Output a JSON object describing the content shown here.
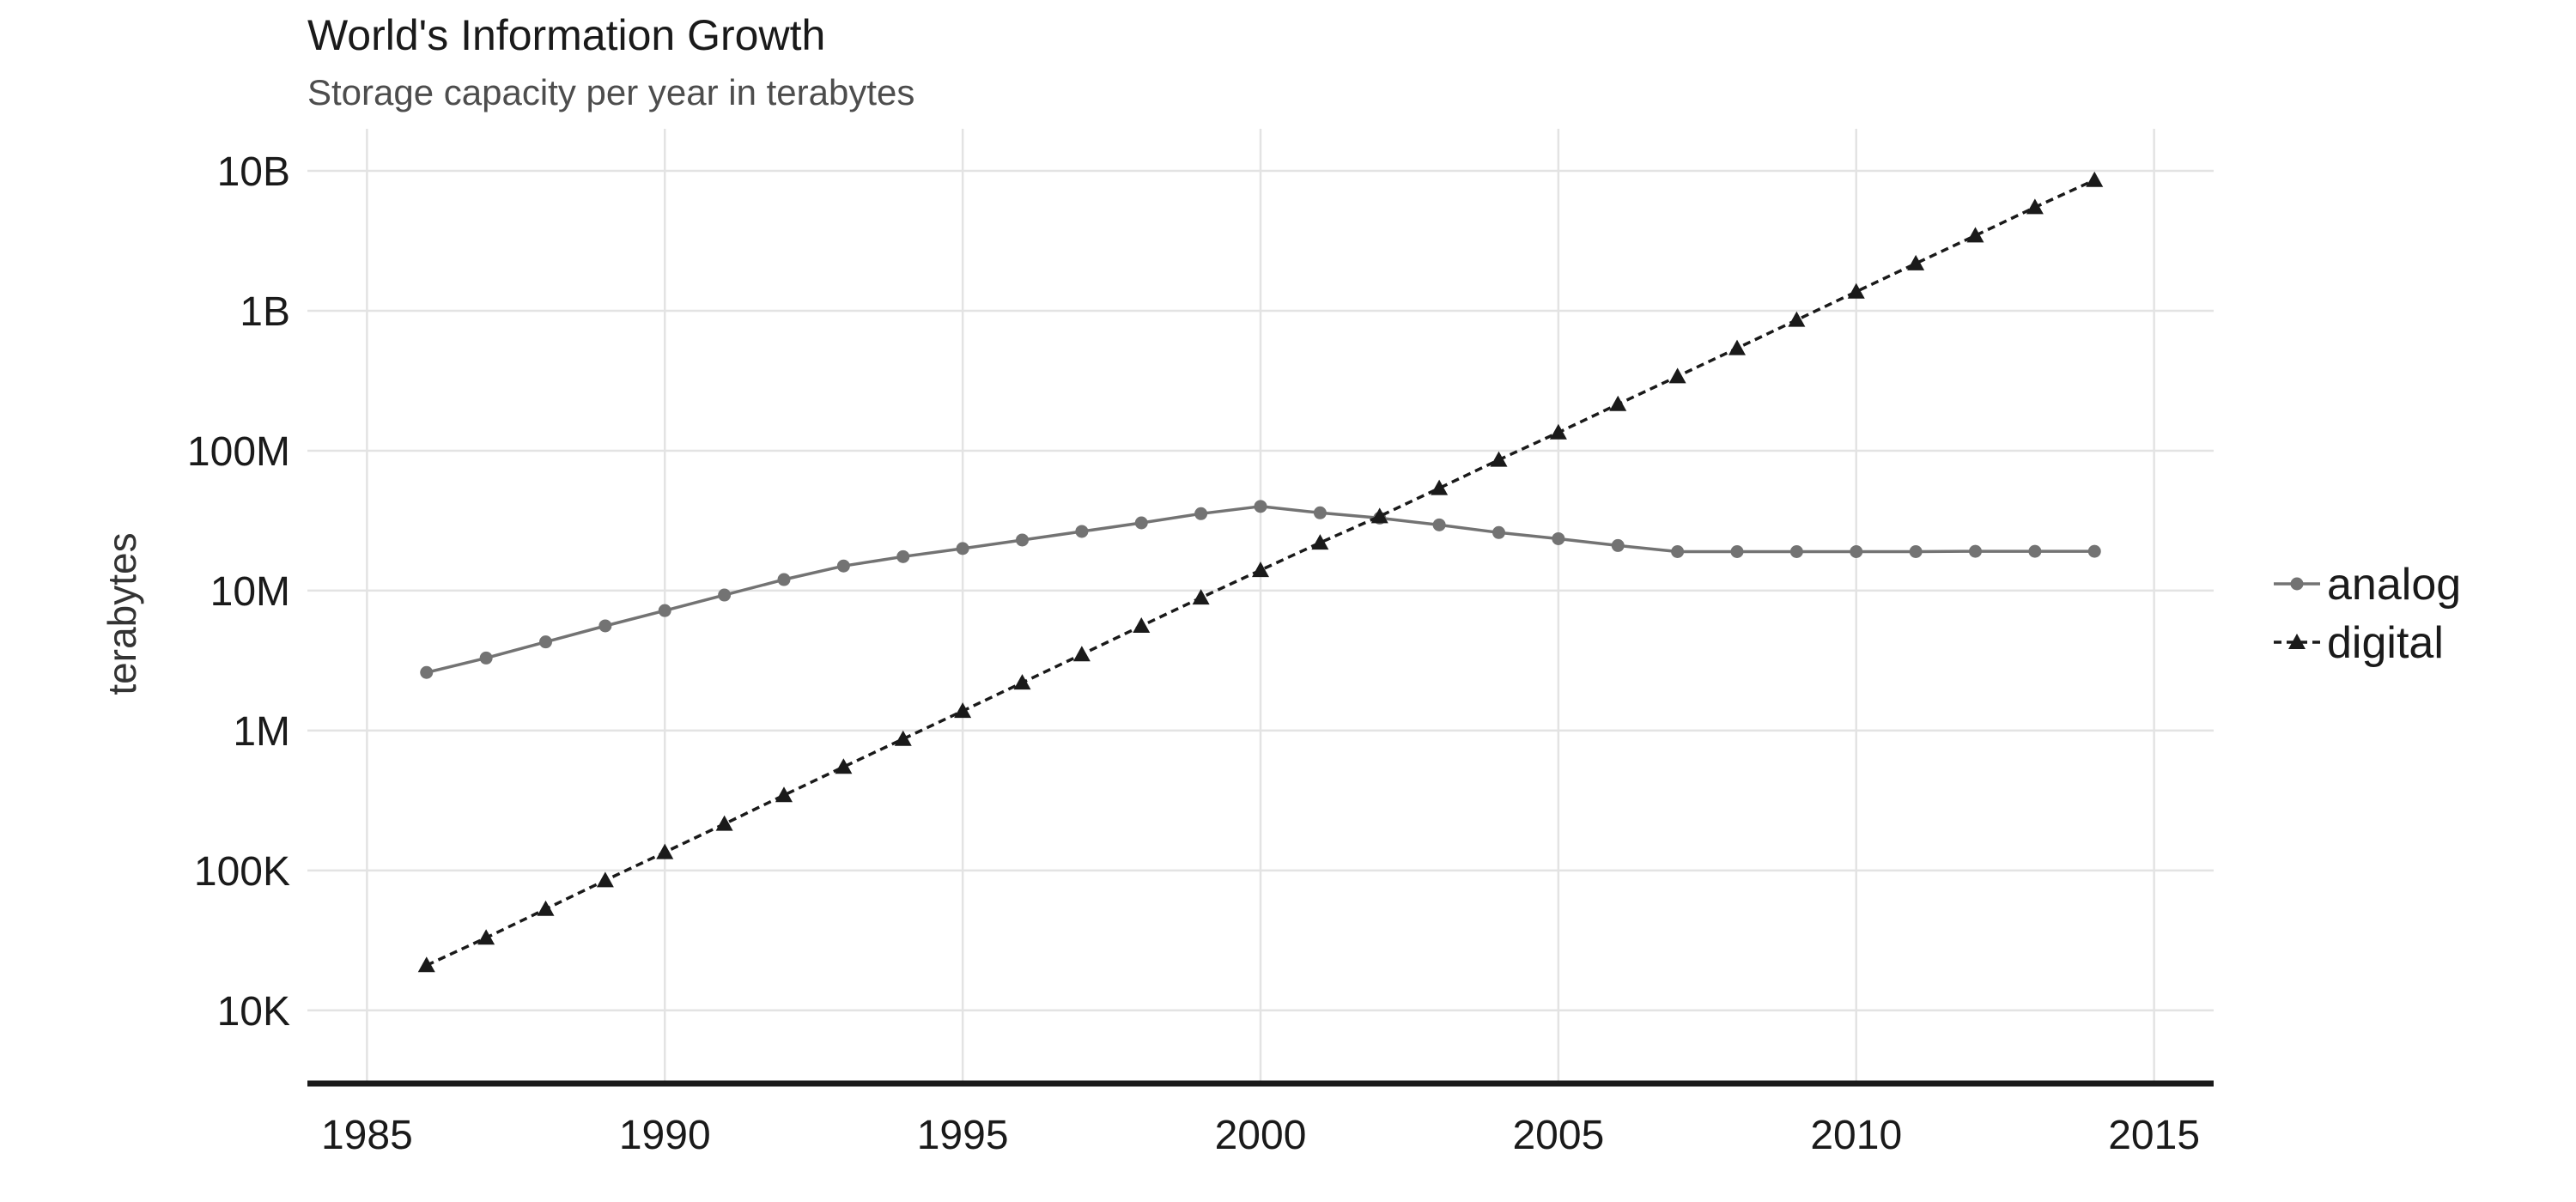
{
  "chart_data": {
    "type": "line",
    "title": "World's Information Growth",
    "subtitle": "Storage capacity per year in terabytes",
    "xlabel": "",
    "ylabel": "terabytes",
    "y_scale": "log10",
    "xlim": [
      1984,
      2016
    ],
    "ylim": [
      3000,
      20000000000
    ],
    "x_ticks": [
      1985,
      1990,
      1995,
      2000,
      2005,
      2010,
      2015
    ],
    "y_ticks": [
      {
        "value": 10000,
        "label": "10K"
      },
      {
        "value": 100000,
        "label": "100K"
      },
      {
        "value": 1000000,
        "label": "1M"
      },
      {
        "value": 10000000,
        "label": "10M"
      },
      {
        "value": 100000000,
        "label": "100M"
      },
      {
        "value": 1000000000,
        "label": "1B"
      },
      {
        "value": 10000000000,
        "label": "10B"
      }
    ],
    "grid": true,
    "legend_position": "right",
    "x": [
      1986,
      1987,
      1988,
      1989,
      1990,
      1991,
      1992,
      1993,
      1994,
      1995,
      1996,
      1997,
      1998,
      1999,
      2000,
      2001,
      2002,
      2003,
      2004,
      2005,
      2006,
      2007,
      2008,
      2009,
      2010,
      2011,
      2012,
      2013,
      2014
    ],
    "series": [
      {
        "name": "analog",
        "color": "#737373",
        "line_style": "solid",
        "marker": "circle",
        "values": [
          2600000,
          3300000,
          4300000,
          5600000,
          7200000,
          9300000,
          12000000,
          15000000,
          17500000,
          20000000,
          23000000,
          26500000,
          30500000,
          35500000,
          40000000,
          36000000,
          33000000,
          29500000,
          26000000,
          23500000,
          21000000,
          19000000,
          19000000,
          19000000,
          19000000,
          19000000,
          19100000,
          19100000,
          19100000
        ]
      },
      {
        "name": "digital",
        "color": "#1a1a1a",
        "line_style": "dashed",
        "marker": "triangle",
        "values": [
          21000,
          33000,
          53000,
          85000,
          135000,
          215000,
          345000,
          550000,
          870000,
          1380000,
          2200000,
          3500000,
          5600000,
          8900000,
          14000000,
          22000000,
          34000000,
          54000000,
          86000000,
          135000000,
          215000000,
          340000000,
          540000000,
          860000000,
          1370000000,
          2180000000,
          3450000000,
          5500000000,
          8600000000
        ]
      }
    ]
  }
}
